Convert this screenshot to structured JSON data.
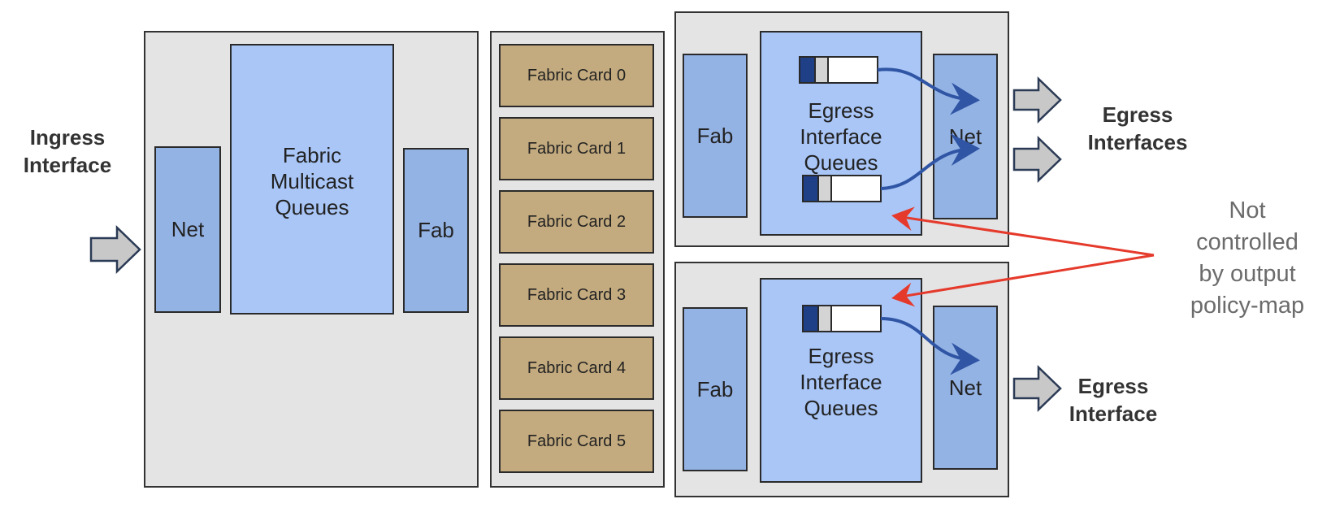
{
  "ingress": {
    "label_line1": "Ingress",
    "label_line2": "Interface",
    "net": "Net",
    "fab": "Fab",
    "queues": [
      "Fabric",
      "Multicast",
      "Queues"
    ]
  },
  "fabric_cards": [
    "Fabric Card 0",
    "Fabric Card 1",
    "Fabric Card 2",
    "Fabric Card 3",
    "Fabric Card 4",
    "Fabric Card 5"
  ],
  "egress_top": {
    "fab": "Fab",
    "net": "Net",
    "queues": [
      "Egress",
      "Interface",
      "Queues"
    ],
    "label_line1": "Egress",
    "label_line2": "Interfaces"
  },
  "egress_bottom": {
    "fab": "Fab",
    "net": "Net",
    "queues": [
      "Egress",
      "Interface",
      "Queues"
    ],
    "label_line1": "Egress",
    "label_line2": "Interface"
  },
  "note": [
    "Not",
    "controlled",
    "by output",
    "policy-map"
  ],
  "colors": {
    "panel": "#e4e4e4",
    "blue_small": "#94b3e5",
    "blue_large": "#a9c6f7",
    "fabric_card": "#c4ab7f",
    "curve_arrow": "#2f55a4",
    "red_arrow": "#e53a2b"
  }
}
